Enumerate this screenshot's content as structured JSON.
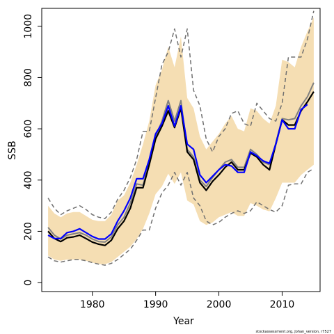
{
  "chart_data": {
    "type": "line",
    "xlabel": "Year",
    "ylabel": "SSB",
    "xlim": [
      1972,
      2016
    ],
    "ylim": [
      -35,
      1070
    ],
    "x_ticks": [
      "1980",
      "1990",
      "2000",
      "2010"
    ],
    "y_ticks": [
      "0",
      "200",
      "400",
      "600",
      "800",
      "1000"
    ],
    "colors": {
      "band": "#f5deb3",
      "dashed": "#707070",
      "gray": "#808080",
      "black": "#000000",
      "blue": "#0000ff"
    },
    "x": [
      1973,
      1974,
      1975,
      1976,
      1977,
      1978,
      1979,
      1980,
      1981,
      1982,
      1983,
      1984,
      1985,
      1986,
      1987,
      1988,
      1989,
      1990,
      1991,
      1992,
      1993,
      1994,
      1995,
      1996,
      1997,
      1998,
      1999,
      2000,
      2001,
      2002,
      2003,
      2004,
      2005,
      2006,
      2007,
      2008,
      2009,
      2010,
      2011,
      2012,
      2013,
      2014,
      2015
    ],
    "band_upper": [
      300,
      270,
      255,
      270,
      275,
      275,
      260,
      245,
      240,
      240,
      265,
      320,
      340,
      390,
      460,
      540,
      630,
      770,
      830,
      920,
      840,
      960,
      720,
      680,
      570,
      520,
      550,
      580,
      620,
      650,
      600,
      590,
      680,
      670,
      640,
      620,
      690,
      870,
      860,
      840,
      920,
      980,
      1035
    ],
    "band_lower": [
      105,
      90,
      85,
      90,
      90,
      90,
      85,
      78,
      72,
      72,
      80,
      100,
      120,
      140,
      170,
      210,
      270,
      345,
      375,
      425,
      385,
      430,
      320,
      305,
      240,
      225,
      235,
      255,
      265,
      275,
      260,
      260,
      310,
      300,
      285,
      278,
      330,
      390,
      390,
      390,
      420,
      440,
      460
    ],
    "series": [
      {
        "name": "upper",
        "values": [
          330,
          290,
          265,
          280,
          290,
          300,
          285,
          265,
          255,
          250,
          275,
          325,
          360,
          410,
          480,
          590,
          590,
          720,
          850,
          900,
          990,
          880,
          990,
          750,
          690,
          560,
          510,
          570,
          600,
          660,
          670,
          620,
          610,
          700,
          670,
          640,
          630,
          700,
          880,
          880,
          880,
          950,
          1060
        ]
      },
      {
        "name": "lower",
        "values": [
          100,
          85,
          80,
          85,
          90,
          90,
          85,
          78,
          72,
          68,
          75,
          90,
          110,
          130,
          165,
          205,
          205,
          290,
          350,
          380,
          430,
          380,
          430,
          330,
          300,
          240,
          225,
          235,
          255,
          270,
          280,
          270,
          280,
          315,
          300,
          285,
          275,
          300,
          380,
          385,
          385,
          430,
          445
        ]
      },
      {
        "name": "gray",
        "values": [
          215,
          185,
          170,
          185,
          190,
          195,
          185,
          170,
          160,
          158,
          178,
          225,
          255,
          310,
          385,
          380,
          470,
          570,
          630,
          710,
          630,
          710,
          520,
          490,
          400,
          375,
          410,
          440,
          470,
          480,
          450,
          450,
          520,
          500,
          470,
          460,
          545,
          640,
          635,
          640,
          690,
          725,
          780
        ]
      },
      {
        "name": "black",
        "values": [
          200,
          172,
          160,
          175,
          178,
          185,
          172,
          158,
          150,
          145,
          165,
          210,
          240,
          290,
          370,
          370,
          460,
          560,
          610,
          670,
          605,
          680,
          510,
          480,
          390,
          360,
          395,
          420,
          450,
          470,
          440,
          440,
          505,
          490,
          460,
          440,
          540,
          635,
          615,
          615,
          670,
          705,
          745
        ]
      },
      {
        "name": "blue",
        "values": [
          185,
          172,
          172,
          195,
          200,
          210,
          195,
          180,
          170,
          170,
          190,
          240,
          280,
          330,
          405,
          405,
          480,
          580,
          620,
          690,
          610,
          690,
          540,
          520,
          420,
          390,
          415,
          440,
          460,
          455,
          430,
          430,
          510,
          495,
          475,
          465,
          540,
          635,
          600,
          600,
          675,
          695,
          null
        ]
      }
    ]
  },
  "footer_text": "stockassessment.org, Johan_version, r7527"
}
